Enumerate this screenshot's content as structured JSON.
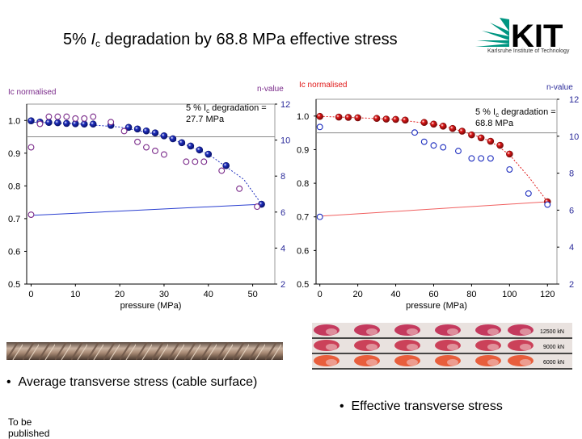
{
  "title": {
    "prefix": "5% ",
    "symbol": "I",
    "subscript": "c",
    "suffix": " degradation by 68.8 MPa effective stress"
  },
  "logo": {
    "text": "KIT",
    "tagline": "Karlsruhe Institute of Technology"
  },
  "colors": {
    "left_ic": "#1f2fbf",
    "left_n": "#7a2a8a",
    "right_ic": "#e01818",
    "right_n": "#1f2fbf",
    "n_axis": "#2a2a9a",
    "ic_label": "#7a2a8a",
    "right_ic_label": "#e01818"
  },
  "bullets": {
    "first": "Average transverse stress (cable surface)",
    "second": "Effective transverse stress"
  },
  "footnote": "To be published",
  "photo_labels": [
    "12500 kN",
    "9000 kN",
    "6000 kN"
  ],
  "chart_data": [
    {
      "type": "scatter",
      "xlabel": "pressure (MPa)",
      "ylabel": "Ic normalised",
      "y2label": "n-value",
      "annotation": {
        "line1": "5 % Ic degradation =",
        "line2": "27.7 MPa"
      },
      "xlim": [
        -1,
        55
      ],
      "xticks": [
        0,
        10,
        20,
        30,
        40,
        50
      ],
      "ylim": [
        0.5,
        1.05
      ],
      "yticks": [
        "0.5",
        "0.6",
        "0.7",
        "0.8",
        "0.9",
        "1.0"
      ],
      "y2lim": [
        2,
        12
      ],
      "y2ticks": [
        2,
        4,
        6,
        8,
        10,
        12
      ],
      "threshold": 0.95,
      "series": [
        {
          "role": "ic",
          "axis": "left",
          "x": [
            0,
            2,
            4,
            6,
            8,
            10,
            12,
            14,
            18,
            22,
            24,
            26,
            28,
            30,
            32,
            34,
            36,
            38,
            40,
            44,
            52
          ],
          "y": [
            0.999,
            0.995,
            0.994,
            0.993,
            0.991,
            0.99,
            0.989,
            0.989,
            0.985,
            0.979,
            0.974,
            0.968,
            0.962,
            0.953,
            0.944,
            0.932,
            0.922,
            0.91,
            0.897,
            0.862,
            0.744
          ]
        },
        {
          "role": "n",
          "axis": "right",
          "x": [
            0,
            2,
            4,
            6,
            8,
            10,
            12,
            14,
            18,
            21,
            24,
            26,
            28,
            30,
            35,
            37,
            39,
            43,
            47,
            51
          ],
          "y": [
            9.6,
            10.9,
            11.3,
            11.3,
            11.3,
            11.2,
            11.2,
            11.3,
            11.0,
            10.5,
            9.9,
            9.6,
            9.4,
            9.2,
            8.8,
            8.8,
            8.8,
            8.3,
            7.3,
            6.3
          ]
        },
        {
          "role": "n",
          "axis": "left",
          "x": [
            0
          ],
          "y": [
            0.712
          ]
        }
      ],
      "fits": [
        {
          "role": "ic",
          "x": [
            0,
            10,
            20,
            30,
            40,
            48,
            52
          ],
          "y": [
            0.995,
            0.99,
            0.98,
            0.953,
            0.897,
            0.82,
            0.744
          ]
        },
        {
          "role": "base",
          "x": [
            0,
            52
          ],
          "y": [
            0.71,
            0.744
          ]
        }
      ]
    },
    {
      "type": "scatter",
      "xlabel": "pressure (MPa)",
      "ylabel": "Ic normalised",
      "y2label": "n-value",
      "annotation": {
        "line1": "5 % Ic degradation =",
        "line2": "68.8 MPa"
      },
      "xlim": [
        -2,
        125
      ],
      "xticks": [
        0,
        20,
        40,
        60,
        80,
        100,
        120
      ],
      "ylim": [
        0.5,
        1.05
      ],
      "yticks": [
        "0.5",
        "0.6",
        "0.7",
        "0.8",
        "0.9",
        "1.0"
      ],
      "y2lim": [
        2,
        12
      ],
      "y2ticks": [
        2,
        4,
        6,
        8,
        10,
        12
      ],
      "threshold": 0.95,
      "series": [
        {
          "role": "ic",
          "axis": "left",
          "x": [
            0,
            10,
            15,
            20,
            30,
            35,
            40,
            45,
            55,
            60,
            65,
            70,
            75,
            80,
            85,
            90,
            95,
            100,
            120
          ],
          "y": [
            0.999,
            0.997,
            0.996,
            0.995,
            0.993,
            0.991,
            0.99,
            0.988,
            0.981,
            0.976,
            0.97,
            0.963,
            0.955,
            0.944,
            0.935,
            0.925,
            0.913,
            0.887,
            0.745
          ]
        },
        {
          "role": "n",
          "axis": "right",
          "x": [
            0,
            50,
            55,
            60,
            65,
            73,
            80,
            85,
            90,
            100,
            110,
            120
          ],
          "y": [
            10.5,
            10.2,
            9.7,
            9.5,
            9.4,
            9.2,
            8.8,
            8.8,
            8.8,
            8.2,
            6.9,
            6.3
          ]
        },
        {
          "role": "n",
          "axis": "left",
          "x": [
            0
          ],
          "y": [
            0.7
          ]
        }
      ],
      "fits": [
        {
          "role": "ic",
          "x": [
            0,
            20,
            40,
            60,
            70,
            80,
            90,
            100,
            110,
            120
          ],
          "y": [
            0.999,
            0.995,
            0.99,
            0.976,
            0.963,
            0.946,
            0.925,
            0.885,
            0.82,
            0.745
          ]
        },
        {
          "role": "base",
          "x": [
            0,
            120
          ],
          "y": [
            0.702,
            0.745
          ]
        }
      ]
    }
  ]
}
